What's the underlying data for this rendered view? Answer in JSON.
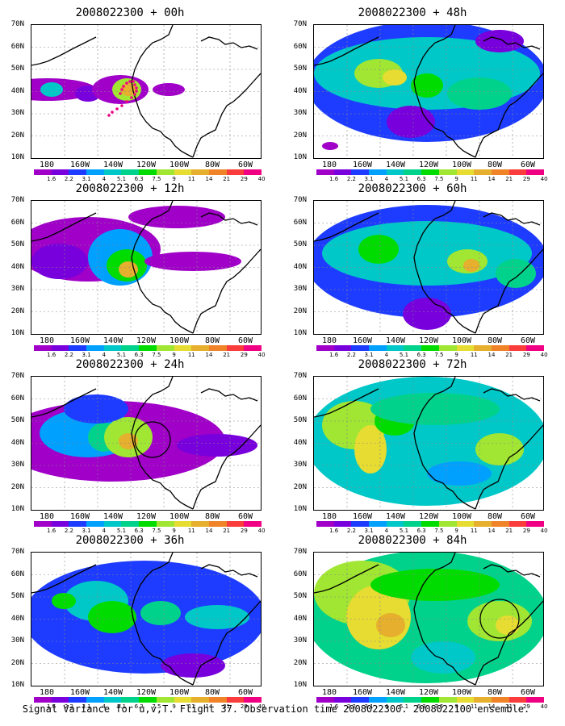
{
  "figure_caption": "Signal Variance for u,v,T. Flight 37. Observation time 2008022300. 2008022100 ensemble.",
  "y_tick_labels": [
    "70N",
    "60N",
    "50N",
    "40N",
    "30N",
    "20N",
    "10N"
  ],
  "x_tick_labels": [
    "180",
    "160W",
    "140W",
    "120W",
    "100W",
    "80W",
    "60W"
  ],
  "colorbar_labels": [
    "1.6",
    "2.2",
    "3.1",
    "4",
    "5.1",
    "6.3",
    "7.5",
    "9",
    "11",
    "14",
    "21",
    "29",
    "40"
  ],
  "colorbar_colors": [
    "#a000c8",
    "#7800dc",
    "#1e3cff",
    "#00a0ff",
    "#00c8c8",
    "#00d28c",
    "#00dc00",
    "#a0e632",
    "#e6dc32",
    "#e6af2d",
    "#f08228",
    "#fa3c3c",
    "#f00082"
  ],
  "panels": [
    {
      "title": "2008022300 + 00h",
      "colorbar": true
    },
    {
      "title": "2008022300 + 48h",
      "colorbar": true
    },
    {
      "title": "2008022300 + 12h",
      "colorbar": true
    },
    {
      "title": "2008022300 + 60h",
      "colorbar": true
    },
    {
      "title": "2008022300 + 24h",
      "colorbar": true
    },
    {
      "title": "2008022300 + 72h",
      "colorbar": true
    },
    {
      "title": "2008022300 + 36h",
      "colorbar": false
    },
    {
      "title": "2008022300 + 84h",
      "colorbar": true
    }
  ],
  "bottom_colorbar": true
}
